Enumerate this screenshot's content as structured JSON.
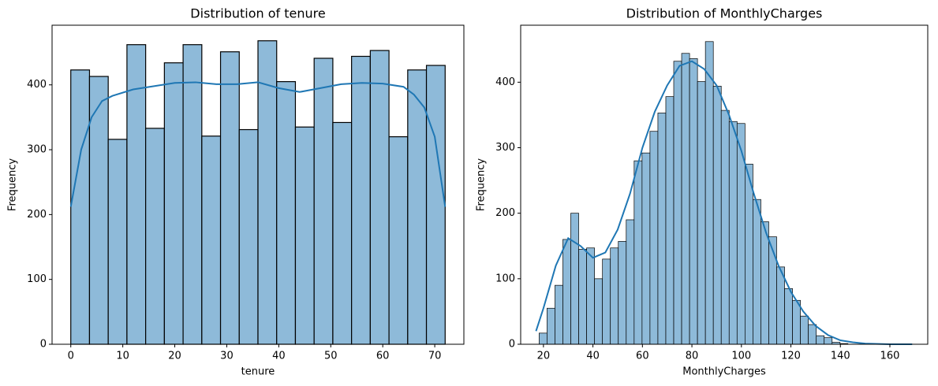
{
  "chart_data": [
    {
      "type": "histogram",
      "title": "Distribution of tenure",
      "xlabel": "tenure",
      "ylabel": "Frequency",
      "bins": [
        0,
        3.6,
        7.2,
        10.8,
        14.4,
        18,
        21.6,
        25.2,
        28.8,
        32.4,
        36,
        39.6,
        43.2,
        46.8,
        50.4,
        54,
        57.6,
        61.2,
        64.8,
        68.4,
        72
      ],
      "values": [
        423,
        413,
        316,
        462,
        333,
        434,
        462,
        321,
        451,
        331,
        468,
        405,
        335,
        441,
        342,
        444,
        453,
        320,
        423,
        430
      ],
      "color": "#8ebad9",
      "edgecolor": "#000000",
      "kde": {
        "x": [
          0,
          2,
          4,
          6,
          8,
          12,
          16,
          20,
          24,
          28,
          32,
          36,
          40,
          44,
          48,
          52,
          56,
          60,
          64,
          66,
          68,
          70,
          72
        ],
        "values": [
          212,
          300,
          350,
          375,
          383,
          393,
          398,
          403,
          404,
          401,
          401,
          404,
          395,
          389,
          395,
          401,
          403,
          402,
          397,
          385,
          365,
          320,
          212
        ],
        "color": "#1f77b4"
      },
      "xlim": [
        -3.6,
        75.6
      ],
      "ylim": [
        0,
        492
      ],
      "xticks": [
        0,
        10,
        20,
        30,
        40,
        50,
        60,
        70
      ],
      "yticks": [
        0,
        100,
        200,
        300,
        400
      ]
    },
    {
      "type": "histogram",
      "title": "Distribution of MonthlyCharges",
      "xlabel": "MonthlyCharges",
      "ylabel": "Frequency",
      "bins": [
        18.25,
        21.45,
        24.65,
        27.85,
        31.05,
        34.25,
        37.45,
        40.65,
        43.85,
        47.05,
        50.25,
        53.45,
        56.65,
        59.85,
        63.05,
        66.25,
        69.45,
        72.65,
        75.85,
        79.05,
        82.25,
        85.45,
        88.65,
        91.85,
        95.05,
        98.25,
        101.45,
        104.65,
        107.85,
        111.05,
        114.25,
        117.45,
        120.65,
        123.85,
        127.05,
        130.25,
        133.45,
        136.65,
        139.85,
        143.05
      ],
      "values": [
        17,
        55,
        90,
        160,
        200,
        145,
        147,
        100,
        130,
        147,
        157,
        190,
        280,
        292,
        325,
        353,
        378,
        432,
        444,
        436,
        401,
        462,
        394,
        357,
        340,
        337,
        275,
        221,
        187,
        164,
        118,
        85,
        67,
        43,
        30,
        13,
        10,
        3,
        1
      ],
      "color": "#8ebad9",
      "edgecolor": "#000000",
      "kde": {
        "x": [
          17,
          20,
          25,
          30,
          35,
          40,
          45,
          50,
          55,
          60,
          65,
          70,
          75,
          80,
          85,
          90,
          95,
          100,
          105,
          110,
          115,
          120,
          125,
          130,
          135,
          140,
          145,
          150,
          160,
          169
        ],
        "values": [
          20,
          55,
          120,
          162,
          150,
          132,
          140,
          175,
          230,
          300,
          355,
          395,
          425,
          432,
          420,
          395,
          350,
          295,
          230,
          170,
          120,
          80,
          50,
          28,
          14,
          6,
          3,
          1,
          0,
          0
        ],
        "color": "#1f77b4"
      },
      "xlim": [
        10.8,
        175.3
      ],
      "ylim": [
        0,
        487
      ],
      "xticks": [
        20,
        40,
        60,
        80,
        100,
        120,
        140,
        160
      ],
      "yticks": [
        0,
        100,
        200,
        300,
        400
      ]
    }
  ]
}
